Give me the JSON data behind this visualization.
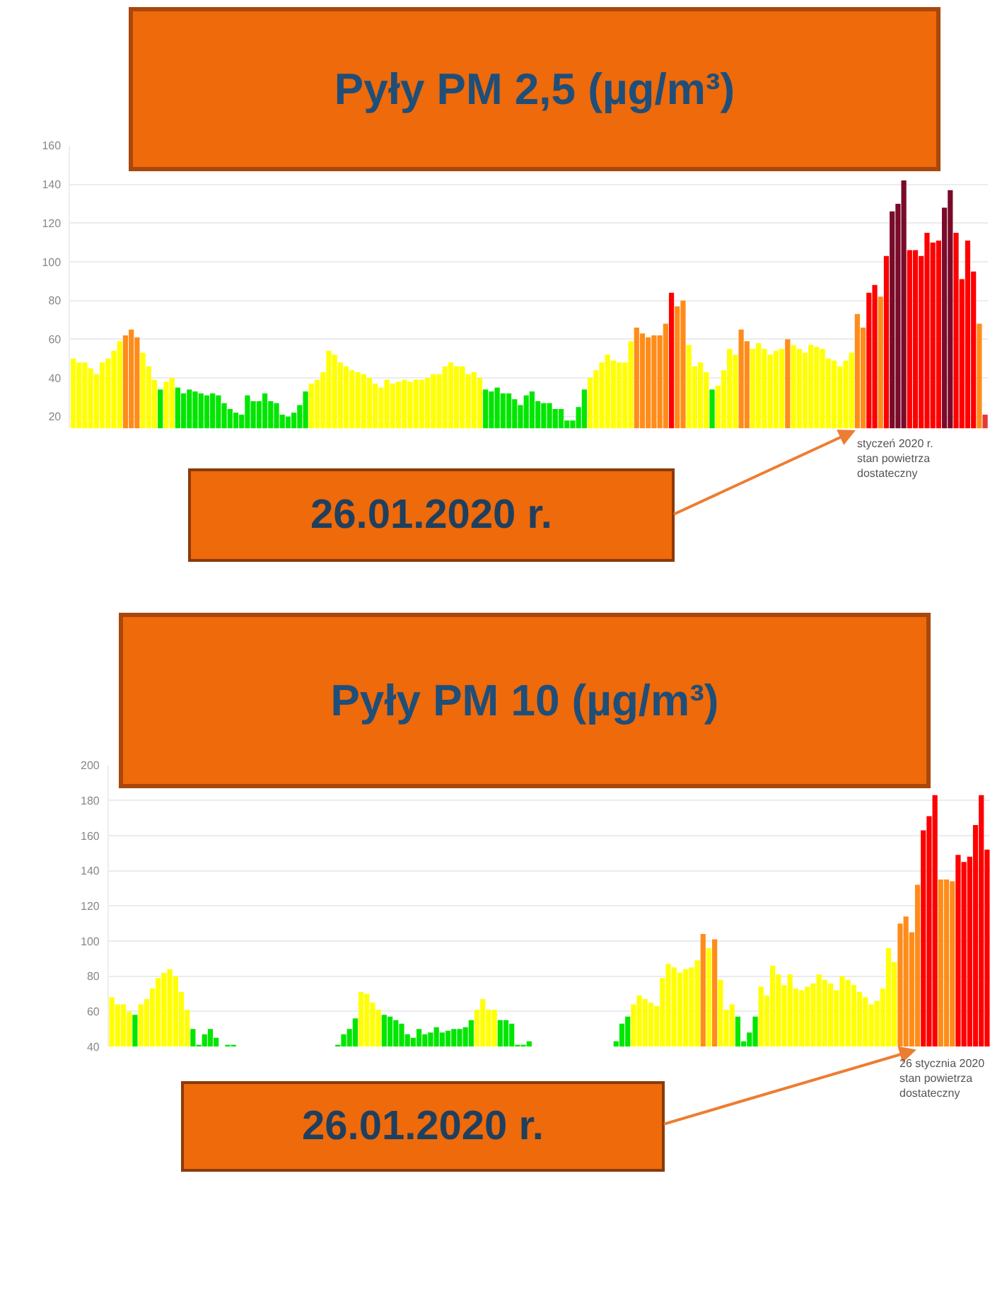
{
  "chart_data": [
    {
      "type": "bar",
      "title": "Pyły PM 2,5 (µg/m³)",
      "grid": "y",
      "tick_labels": "y",
      "categories": [
        null,
        null,
        null,
        null,
        null,
        null,
        null,
        null,
        null,
        null,
        null,
        null,
        null,
        null,
        null,
        null,
        null,
        null,
        null,
        null,
        null,
        null,
        null,
        null,
        null,
        null,
        null,
        null,
        null,
        null,
        null,
        null,
        null,
        null,
        null,
        null,
        null,
        null,
        null,
        null,
        null,
        null,
        null,
        null,
        null,
        null,
        null,
        null,
        null,
        null,
        null,
        null,
        null,
        null,
        null,
        null,
        null,
        null,
        null,
        null,
        null,
        null,
        null,
        null,
        null,
        null,
        null,
        null,
        null,
        null,
        null,
        null,
        null,
        null,
        null,
        null,
        null,
        null,
        null,
        null,
        null,
        null,
        null,
        null,
        null,
        null,
        null,
        null,
        null,
        null,
        null,
        null,
        null,
        null,
        null,
        null,
        null,
        null,
        null,
        null,
        null,
        null,
        null,
        null,
        null,
        null,
        null,
        null,
        null,
        null,
        null,
        null,
        null,
        null,
        null,
        null,
        null,
        null,
        null,
        null,
        null,
        null,
        null,
        null,
        null,
        null,
        null,
        null,
        null,
        null,
        null,
        null,
        null,
        null,
        null,
        null,
        null,
        null,
        null,
        null,
        null,
        null,
        null,
        null,
        null,
        null,
        null,
        null,
        null,
        null,
        null,
        null,
        null,
        null,
        null,
        null,
        null,
        null
      ],
      "values": [
        50,
        48,
        48,
        45,
        42,
        48,
        50,
        54,
        59,
        62,
        65,
        61,
        53,
        46,
        39,
        34,
        38,
        40,
        35,
        32,
        34,
        33,
        32,
        31,
        32,
        31,
        27,
        24,
        22,
        21,
        31,
        28,
        28,
        32,
        28,
        27,
        21,
        20,
        22,
        26,
        33,
        37,
        39,
        43,
        54,
        52,
        48,
        46,
        44,
        43,
        42,
        40,
        37,
        35,
        39,
        37,
        38,
        39,
        38,
        39,
        39,
        40,
        42,
        42,
        46,
        48,
        46,
        46,
        42,
        43,
        40,
        34,
        33,
        35,
        32,
        32,
        29,
        26,
        31,
        33,
        28,
        27,
        27,
        24,
        24,
        18,
        18,
        25,
        34,
        40,
        44,
        48,
        52,
        49,
        48,
        48,
        59,
        66,
        63,
        61,
        62,
        62,
        68,
        84,
        77,
        80,
        57,
        46,
        48,
        43,
        34,
        36,
        44,
        55,
        52,
        65,
        59,
        55,
        58,
        55,
        52,
        54,
        55,
        60,
        57,
        55,
        53,
        57,
        56,
        55,
        50,
        49,
        46,
        49,
        53,
        73,
        66,
        84,
        88,
        82,
        103,
        126,
        130,
        142,
        106,
        106,
        103,
        115,
        110,
        111,
        128,
        137,
        115,
        91,
        111,
        95,
        68,
        21
      ],
      "colors": [
        "#ffff00",
        "#ffff00",
        "#ffff00",
        "#ffff00",
        "#ffff00",
        "#ffff00",
        "#ffff00",
        "#ffff00",
        "#ffff00",
        "#ff8c1a",
        "#ff8c1a",
        "#ff8c1a",
        "#ffff00",
        "#ffff00",
        "#ffff00",
        "#00e600",
        "#ffff00",
        "#ffff00",
        "#00e600",
        "#00e600",
        "#00e600",
        "#00e600",
        "#00e600",
        "#00e600",
        "#00e600",
        "#00e600",
        "#00e600",
        "#00e600",
        "#00e600",
        "#00e600",
        "#00e600",
        "#00e600",
        "#00e600",
        "#00e600",
        "#00e600",
        "#00e600",
        "#00e600",
        "#00e600",
        "#00e600",
        "#00e600",
        "#00e600",
        "#ffff00",
        "#ffff00",
        "#ffff00",
        "#ffff00",
        "#ffff00",
        "#ffff00",
        "#ffff00",
        "#ffff00",
        "#ffff00",
        "#ffff00",
        "#ffff00",
        "#ffff00",
        "#ffff00",
        "#ffff00",
        "#ffff00",
        "#ffff00",
        "#ffff00",
        "#ffff00",
        "#ffff00",
        "#ffff00",
        "#ffff00",
        "#ffff00",
        "#ffff00",
        "#ffff00",
        "#ffff00",
        "#ffff00",
        "#ffff00",
        "#ffff00",
        "#ffff00",
        "#ffff00",
        "#00e600",
        "#00e600",
        "#00e600",
        "#00e600",
        "#00e600",
        "#00e600",
        "#00e600",
        "#00e600",
        "#00e600",
        "#00e600",
        "#00e600",
        "#00e600",
        "#00e600",
        "#00e600",
        "#00e600",
        "#00e600",
        "#00e600",
        "#00e600",
        "#ffff00",
        "#ffff00",
        "#ffff00",
        "#ffff00",
        "#ffff00",
        "#ffff00",
        "#ffff00",
        "#ffff00",
        "#ff8c1a",
        "#ff8c1a",
        "#ff8c1a",
        "#ff8c1a",
        "#ff8c1a",
        "#ff8c1a",
        "#ff0000",
        "#ff8c1a",
        "#ff8c1a",
        "#ffff00",
        "#ffff00",
        "#ffff00",
        "#ffff00",
        "#00e600",
        "#ffff00",
        "#ffff00",
        "#ffff00",
        "#ffff00",
        "#ff8c1a",
        "#ff8c1a",
        "#ffff00",
        "#ffff00",
        "#ffff00",
        "#ffff00",
        "#ffff00",
        "#ffff00",
        "#ff8c1a",
        "#ffff00",
        "#ffff00",
        "#ffff00",
        "#ffff00",
        "#ffff00",
        "#ffff00",
        "#ffff00",
        "#ffff00",
        "#ffff00",
        "#ffff00",
        "#ffff00",
        "#ff8c1a",
        "#ff8c1a",
        "#ff0000",
        "#ff0000",
        "#ff8c1a",
        "#ff0000",
        "#7a0a2a",
        "#7a0a2a",
        "#7a0a2a",
        "#ff0000",
        "#ff0000",
        "#ff0000",
        "#ff0000",
        "#ff0000",
        "#ff0000",
        "#7a0a2a",
        "#7a0a2a",
        "#ff0000",
        "#ff0000",
        "#ff0000",
        "#ff0000",
        "#ff8c1a",
        "#e53935"
      ],
      "ylim": [
        14,
        160
      ],
      "yticks": [
        20,
        40,
        60,
        80,
        100,
        120,
        140,
        160
      ],
      "annotations": [
        "26.01.2020 r.",
        "styczeń 2020 r.\nstan powietrza\ndostateczny"
      ]
    },
    {
      "type": "bar",
      "title": "Pyły PM 10 (µg/m³)",
      "grid": "y",
      "tick_labels": "y",
      "categories": [
        null,
        null,
        null,
        null,
        null,
        null,
        null,
        null,
        null,
        null,
        null,
        null,
        null,
        null,
        null,
        null,
        null,
        null,
        null,
        null,
        null,
        null,
        null,
        null,
        null,
        null,
        null,
        null,
        null,
        null,
        null,
        null,
        null,
        null,
        null,
        null,
        null,
        null,
        null,
        null,
        null,
        null,
        null,
        null,
        null,
        null,
        null,
        null,
        null,
        null,
        null,
        null,
        null,
        null,
        null,
        null,
        null,
        null,
        null,
        null,
        null,
        null,
        null,
        null,
        null,
        null,
        null,
        null,
        null,
        null,
        null,
        null,
        null,
        null,
        null,
        null,
        null,
        null,
        null,
        null,
        null,
        null,
        null,
        null,
        null,
        null,
        null,
        null,
        null,
        null,
        null,
        null,
        null,
        null,
        null,
        null,
        null,
        null,
        null,
        null,
        null,
        null,
        null,
        null,
        null,
        null,
        null,
        null,
        null,
        null,
        null,
        null,
        null,
        null,
        null,
        null,
        null,
        null,
        null,
        null,
        null,
        null,
        null,
        null,
        null,
        null,
        null,
        null,
        null,
        null,
        null,
        null,
        null,
        null,
        null,
        null,
        null,
        null,
        null,
        null,
        null,
        null,
        null,
        null,
        null,
        null,
        null,
        null,
        null,
        null,
        null,
        null
      ],
      "values": [
        68,
        64,
        64,
        60,
        58,
        64,
        67,
        73,
        79,
        82,
        84,
        80,
        71,
        61,
        50,
        41,
        47,
        50,
        45,
        null,
        41,
        41,
        null,
        null,
        null,
        null,
        null,
        null,
        null,
        null,
        null,
        null,
        null,
        null,
        null,
        null,
        null,
        null,
        null,
        41,
        47,
        50,
        56,
        71,
        70,
        65,
        61,
        58,
        57,
        55,
        53,
        47,
        45,
        50,
        47,
        48,
        51,
        48,
        49,
        50,
        50,
        51,
        55,
        61,
        67,
        61,
        61,
        55,
        55,
        53,
        41,
        41,
        43,
        null,
        null,
        null,
        null,
        null,
        null,
        null,
        null,
        null,
        null,
        null,
        null,
        null,
        null,
        43,
        53,
        57,
        64,
        69,
        67,
        65,
        63,
        79,
        87,
        85,
        82,
        84,
        85,
        89,
        104,
        96,
        101,
        78,
        61,
        64,
        57,
        43,
        48,
        57,
        74,
        69,
        86,
        81,
        75,
        81,
        73,
        72,
        74,
        76,
        81,
        78,
        76,
        72,
        80,
        78,
        75,
        71,
        68,
        64,
        66,
        73,
        96,
        88,
        110,
        114,
        105,
        132,
        163,
        171,
        183,
        135,
        135,
        134,
        149,
        145,
        148,
        166,
        183,
        152
      ],
      "colors": [
        "#ffff00",
        "#ffff00",
        "#ffff00",
        "#ffff00",
        "#00e600",
        "#ffff00",
        "#ffff00",
        "#ffff00",
        "#ffff00",
        "#ffff00",
        "#ffff00",
        "#ffff00",
        "#ffff00",
        "#ffff00",
        "#00e600",
        "#00e600",
        "#00e600",
        "#00e600",
        "#00e600",
        "#00e600",
        "#00e600",
        "#00e600",
        "#00e600",
        "#00e600",
        "#00e600",
        "#00e600",
        "#00e600",
        "#00e600",
        "#00e600",
        "#00e600",
        "#00e600",
        "#00e600",
        "#00e600",
        "#00e600",
        "#00e600",
        "#00e600",
        "#00e600",
        "#00e600",
        "#00e600",
        "#00e600",
        "#00e600",
        "#00e600",
        "#00e600",
        "#ffff00",
        "#ffff00",
        "#ffff00",
        "#ffff00",
        "#00e600",
        "#00e600",
        "#00e600",
        "#00e600",
        "#00e600",
        "#00e600",
        "#00e600",
        "#00e600",
        "#00e600",
        "#00e600",
        "#00e600",
        "#00e600",
        "#00e600",
        "#00e600",
        "#00e600",
        "#00e600",
        "#ffff00",
        "#ffff00",
        "#ffff00",
        "#ffff00",
        "#00e600",
        "#00e600",
        "#00e600",
        "#00e600",
        "#00e600",
        "#00e600",
        "#00e600",
        "#00e600",
        "#00e600",
        "#00e600",
        "#00e600",
        "#00e600",
        "#00e600",
        "#00e600",
        "#00e600",
        "#00e600",
        "#00e600",
        "#00e600",
        "#00e600",
        "#00e600",
        "#00e600",
        "#00e600",
        "#00e600",
        "#ffff00",
        "#ffff00",
        "#ffff00",
        "#ffff00",
        "#ffff00",
        "#ffff00",
        "#ffff00",
        "#ffff00",
        "#ffff00",
        "#ffff00",
        "#ffff00",
        "#ffff00",
        "#ff8c1a",
        "#ffff00",
        "#ff8c1a",
        "#ffff00",
        "#ffff00",
        "#ffff00",
        "#00e600",
        "#00e600",
        "#00e600",
        "#00e600",
        "#ffff00",
        "#ffff00",
        "#ffff00",
        "#ffff00",
        "#ffff00",
        "#ffff00",
        "#ffff00",
        "#ffff00",
        "#ffff00",
        "#ffff00",
        "#ffff00",
        "#ffff00",
        "#ffff00",
        "#ffff00",
        "#ffff00",
        "#ffff00",
        "#ffff00",
        "#ffff00",
        "#ffff00",
        "#ffff00",
        "#ffff00",
        "#ffff00",
        "#ffff00",
        "#ffff00",
        "#ff8c1a",
        "#ff8c1a",
        "#ff8c1a",
        "#ff8c1a",
        "#ff0000",
        "#ff0000",
        "#ff0000",
        "#ff8c1a",
        "#ff8c1a",
        "#ff8c1a",
        "#ff0000",
        "#ff0000",
        "#ff0000",
        "#ff0000",
        "#ff0000",
        "#ff0000"
      ],
      "ylim": [
        40,
        200
      ],
      "yticks": [
        40,
        60,
        80,
        100,
        120,
        140,
        160,
        180,
        200
      ],
      "annotations": [
        "26.01.2020 r.",
        "26 stycznia 2020\nstan powietrza\ndostateczny"
      ]
    }
  ]
}
